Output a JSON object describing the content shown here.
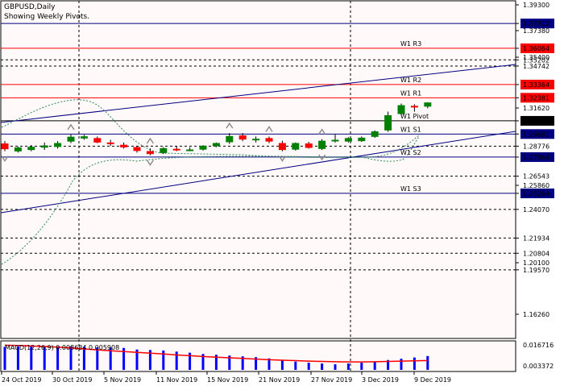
{
  "header": {
    "symbol": "GBPUSD,Daily",
    "subtitle": "Showing Weekly Pivots."
  },
  "colors": {
    "background": "#fff9f9",
    "bull": "#008000",
    "bear": "#ff0000",
    "resistance": "#ff0000",
    "support": "#000080",
    "pivot": "#000000",
    "macd_hist": "#0000ff",
    "macd_signal": "#ff0000",
    "bands": "#2e8b57"
  },
  "pivots": [
    {
      "label": "W1  R3",
      "price": 1.36064,
      "color": "#ff0000"
    },
    {
      "label": "W1  R2",
      "price": 1.33364,
      "color": "#ff0000"
    },
    {
      "label": "W1  R1",
      "price": 1.32381,
      "color": "#ff0000"
    },
    {
      "label": "W1  Pivot",
      "price": 1.30664,
      "color": "#000000"
    },
    {
      "label": "W1  S1",
      "price": 1.29681,
      "color": "#000080"
    },
    {
      "label": "W1  S2",
      "price": 1.27964,
      "color": "#000080"
    },
    {
      "label": "W1  S3",
      "price": 1.25264,
      "color": "#000080"
    }
  ],
  "price_scale": [
    {
      "text": "1.39300",
      "price": 1.393,
      "type": "plain"
    },
    {
      "text": "1.37912",
      "price": 1.37912,
      "type": "navy"
    },
    {
      "text": "1.37380",
      "price": 1.3738,
      "type": "plain"
    },
    {
      "text": "1.36064",
      "price": 1.36064,
      "type": "red"
    },
    {
      "text": "1.35400",
      "price": 1.354,
      "type": "plain"
    },
    {
      "text": "1.35202",
      "price": 1.35202,
      "type": "plain"
    },
    {
      "text": "1.34742",
      "price": 1.34742,
      "type": "plain"
    },
    {
      "text": "1.33364",
      "price": 1.33364,
      "type": "red"
    },
    {
      "text": "1.32381",
      "price": 1.32381,
      "type": "red"
    },
    {
      "text": "1.31620",
      "price": 1.3162,
      "type": "plain"
    },
    {
      "text": "1.30664",
      "price": 1.30664,
      "type": "black"
    },
    {
      "text": "1.29681",
      "price": 1.29681,
      "type": "navy"
    },
    {
      "text": "1.28776",
      "price": 1.28776,
      "type": "plain"
    },
    {
      "text": "1.27964",
      "price": 1.27964,
      "type": "navy"
    },
    {
      "text": "1.26543",
      "price": 1.26543,
      "type": "plain"
    },
    {
      "text": "1.25860",
      "price": 1.2586,
      "type": "plain"
    },
    {
      "text": "1.25264",
      "price": 1.25264,
      "type": "navy"
    },
    {
      "text": "1.24070",
      "price": 1.2407,
      "type": "plain"
    },
    {
      "text": "1.21934",
      "price": 1.21934,
      "type": "plain"
    },
    {
      "text": "1.20804",
      "price": 1.20804,
      "type": "plain"
    },
    {
      "text": "1.20100",
      "price": 1.201,
      "type": "plain"
    },
    {
      "text": "1.19570",
      "price": 1.1957,
      "type": "plain"
    },
    {
      "text": "1.16260",
      "price": 1.1626,
      "type": "plain"
    }
  ],
  "dotted_levels": [
    1.35202,
    1.34742,
    1.28776,
    1.26543,
    1.2407,
    1.21934,
    1.20804,
    1.1957
  ],
  "navy_levels": [
    1.37912
  ],
  "candles": [
    {
      "o": 1.2895,
      "h": 1.2915,
      "l": 1.284,
      "c": 1.2858
    },
    {
      "o": 1.2842,
      "h": 1.2875,
      "l": 1.283,
      "c": 1.2865
    },
    {
      "o": 1.2852,
      "h": 1.2885,
      "l": 1.284,
      "c": 1.287
    },
    {
      "o": 1.287,
      "h": 1.2905,
      "l": 1.285,
      "c": 1.288
    },
    {
      "o": 1.2875,
      "h": 1.2915,
      "l": 1.286,
      "c": 1.2898
    },
    {
      "o": 1.2915,
      "h": 1.2965,
      "l": 1.29,
      "c": 1.2945
    },
    {
      "o": 1.2938,
      "h": 1.2962,
      "l": 1.2925,
      "c": 1.2948
    },
    {
      "o": 1.2935,
      "h": 1.295,
      "l": 1.29,
      "c": 1.2908
    },
    {
      "o": 1.2902,
      "h": 1.2925,
      "l": 1.288,
      "c": 1.2898
    },
    {
      "o": 1.2885,
      "h": 1.2905,
      "l": 1.286,
      "c": 1.2872
    },
    {
      "o": 1.2868,
      "h": 1.288,
      "l": 1.283,
      "c": 1.2845
    },
    {
      "o": 1.2838,
      "h": 1.2862,
      "l": 1.281,
      "c": 1.2822
    },
    {
      "o": 1.283,
      "h": 1.287,
      "l": 1.282,
      "c": 1.286
    },
    {
      "o": 1.2855,
      "h": 1.288,
      "l": 1.284,
      "c": 1.285
    },
    {
      "o": 1.2848,
      "h": 1.287,
      "l": 1.284,
      "c": 1.285
    },
    {
      "o": 1.2855,
      "h": 1.2885,
      "l": 1.2845,
      "c": 1.2878
    },
    {
      "o": 1.288,
      "h": 1.2905,
      "l": 1.287,
      "c": 1.2898
    },
    {
      "o": 1.291,
      "h": 1.2975,
      "l": 1.2895,
      "c": 1.295
    },
    {
      "o": 1.2955,
      "h": 1.2975,
      "l": 1.2915,
      "c": 1.293
    },
    {
      "o": 1.293,
      "h": 1.295,
      "l": 1.2905,
      "c": 1.293
    },
    {
      "o": 1.2935,
      "h": 1.295,
      "l": 1.29,
      "c": 1.2915
    },
    {
      "o": 1.2898,
      "h": 1.2918,
      "l": 1.284,
      "c": 1.2852
    },
    {
      "o": 1.2855,
      "h": 1.2905,
      "l": 1.2845,
      "c": 1.2898
    },
    {
      "o": 1.2895,
      "h": 1.291,
      "l": 1.286,
      "c": 1.2868
    },
    {
      "o": 1.286,
      "h": 1.293,
      "l": 1.285,
      "c": 1.2915
    },
    {
      "o": 1.292,
      "h": 1.2965,
      "l": 1.2905,
      "c": 1.2922
    },
    {
      "o": 1.2915,
      "h": 1.2945,
      "l": 1.2905,
      "c": 1.2935
    },
    {
      "o": 1.2918,
      "h": 1.295,
      "l": 1.291,
      "c": 1.2938
    },
    {
      "o": 1.295,
      "h": 1.2995,
      "l": 1.294,
      "c": 1.2985
    },
    {
      "o": 1.2998,
      "h": 1.3135,
      "l": 1.2985,
      "c": 1.3105
    },
    {
      "o": 1.312,
      "h": 1.3195,
      "l": 1.3105,
      "c": 1.318
    },
    {
      "o": 1.3175,
      "h": 1.319,
      "l": 1.3135,
      "c": 1.317
    },
    {
      "o": 1.3175,
      "h": 1.3205,
      "l": 1.316,
      "c": 1.32
    }
  ],
  "macd": {
    "label": "MACD(12,26,9) 0.008684 0.005908",
    "scale_top": "0.016716",
    "scale_bottom": "0.003372",
    "hist": [
      0.0145,
      0.0148,
      0.015,
      0.015,
      0.0148,
      0.0147,
      0.0145,
      0.0142,
      0.014,
      0.0138,
      0.0128,
      0.0125,
      0.0122,
      0.0115,
      0.0108,
      0.01,
      0.0095,
      0.009,
      0.0085,
      0.008,
      0.0072,
      0.0062,
      0.0052,
      0.0045,
      0.004,
      0.0035,
      0.004,
      0.0045,
      0.005,
      0.0062,
      0.007,
      0.0078,
      0.0087
    ],
    "signal": [
      0.0155,
      0.0153,
      0.015,
      0.0147,
      0.0143,
      0.0138,
      0.0132,
      0.0126,
      0.012,
      0.0115,
      0.011,
      0.0105,
      0.01,
      0.0094,
      0.0089,
      0.0084,
      0.008,
      0.0076,
      0.0072,
      0.0068,
      0.0064,
      0.0061,
      0.0058,
      0.0055,
      0.0053,
      0.0051,
      0.005,
      0.005,
      0.0051,
      0.0053,
      0.0055,
      0.0057,
      0.0059
    ]
  },
  "date_axis": [
    "24 Oct 2019",
    "30 Oct 2019",
    "5 Nov 2019",
    "11 Nov 2019",
    "15 Nov 2019",
    "21 Nov 2019",
    "27 Nov 2019",
    "3 Dec 2019",
    "9 Dec 2019"
  ]
}
